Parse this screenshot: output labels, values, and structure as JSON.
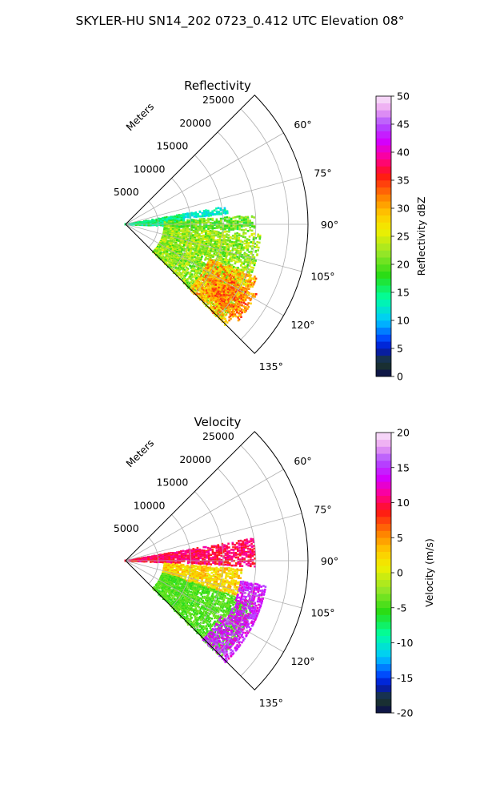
{
  "suptitle": "SKYLER-HU  SN14_202  0723_0.412 UTC Elevation 08°",
  "chart_data": [
    {
      "type": "heatmap",
      "subtype": "polar-sector-ppi",
      "title": "Reflectivity",
      "range_label": "Meters",
      "range_ticks": [
        5000,
        10000,
        15000,
        20000,
        25000
      ],
      "rmax": 28000,
      "azimuth_ticks": [
        "60°",
        "75°",
        "90°",
        "105°",
        "120°",
        "135°"
      ],
      "azimuth_tick_values": [
        60,
        75,
        90,
        105,
        120,
        135
      ],
      "azimuth_range": [
        45,
        135
      ],
      "colorbar": {
        "label": "Reflectivity dBZ",
        "min": 0,
        "max": 50,
        "ticks": [
          0,
          5,
          10,
          15,
          20,
          25,
          30,
          35,
          40,
          45,
          50
        ],
        "colormap": "pyart_HomeyerRainbow"
      },
      "echo_regions": [
        {
          "az": [
            80,
            92
          ],
          "r": [
            0,
            9000
          ],
          "value_range": [
            12,
            18
          ]
        },
        {
          "az": [
            86,
            93
          ],
          "r": [
            6000,
            20000
          ],
          "value_range": [
            16,
            24
          ]
        },
        {
          "az": [
            80,
            84
          ],
          "r": [
            9000,
            16000
          ],
          "value_range": [
            10,
            15
          ]
        },
        {
          "az": [
            94,
            135
          ],
          "r": [
            6000,
            21000
          ],
          "value_range": [
            18,
            26
          ]
        },
        {
          "az": [
            112,
            135
          ],
          "r": [
            14000,
            22000
          ],
          "value_range": [
            26,
            34
          ]
        },
        {
          "az": [
            118,
            130
          ],
          "r": [
            16000,
            23000
          ],
          "value_range": [
            28,
            36
          ]
        }
      ]
    },
    {
      "type": "heatmap",
      "subtype": "polar-sector-ppi",
      "title": "Velocity",
      "range_label": "Meters",
      "range_ticks": [
        5000,
        10000,
        15000,
        20000,
        25000
      ],
      "rmax": 28000,
      "azimuth_ticks": [
        "60°",
        "75°",
        "90°",
        "105°",
        "120°",
        "135°"
      ],
      "azimuth_tick_values": [
        60,
        75,
        90,
        105,
        120,
        135
      ],
      "azimuth_range": [
        45,
        135
      ],
      "colorbar": {
        "label": "Velocity (m/s)",
        "min": -20,
        "max": 20,
        "ticks": [
          -20,
          -15,
          -10,
          -5,
          0,
          5,
          10,
          15,
          20
        ],
        "colormap": "pyart_HomeyerRainbow"
      },
      "echo_regions": [
        {
          "az": [
            80,
            92
          ],
          "r": [
            0,
            20000
          ],
          "value_range": [
            8,
            12
          ]
        },
        {
          "az": [
            94,
            108
          ],
          "r": [
            6000,
            18000
          ],
          "value_range": [
            0,
            5
          ]
        },
        {
          "az": [
            108,
            135
          ],
          "r": [
            6000,
            21000
          ],
          "value_range": [
            -6,
            -3
          ]
        },
        {
          "az": [
            100,
            120
          ],
          "r": [
            18000,
            22000
          ],
          "value_range": [
            12,
            16
          ]
        },
        {
          "az": [
            120,
            135
          ],
          "r": [
            17000,
            22000
          ],
          "value_range": [
            12,
            17
          ]
        }
      ]
    }
  ]
}
